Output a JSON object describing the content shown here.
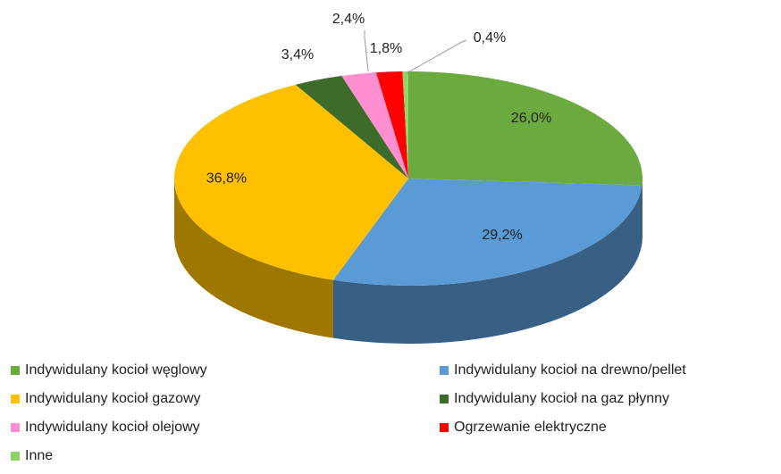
{
  "chart_data": {
    "type": "pie3d",
    "categories": [
      "Indywidulany kocioł węglowy",
      "Indywidulany kocioł na drewno/pellet",
      "Indywidulany kocioł gazowy",
      "Indywidulany kocioł na gaz płynny",
      "Indywidulany kocioł olejowy",
      "Ogrzewanie elektryczne",
      "Inne"
    ],
    "values": [
      26.0,
      29.2,
      36.8,
      3.4,
      2.4,
      1.8,
      0.4
    ],
    "value_labels": [
      "26,0%",
      "29,2%",
      "36,8%",
      "3,4%",
      "2,4%",
      "1,8%",
      "0,4%"
    ],
    "colors": [
      "#6aaa3e",
      "#5b9bd5",
      "#ffc000",
      "#3d6b29",
      "#ff8fd0",
      "#ff0000",
      "#8fd46a"
    ],
    "legend": "bottom"
  }
}
